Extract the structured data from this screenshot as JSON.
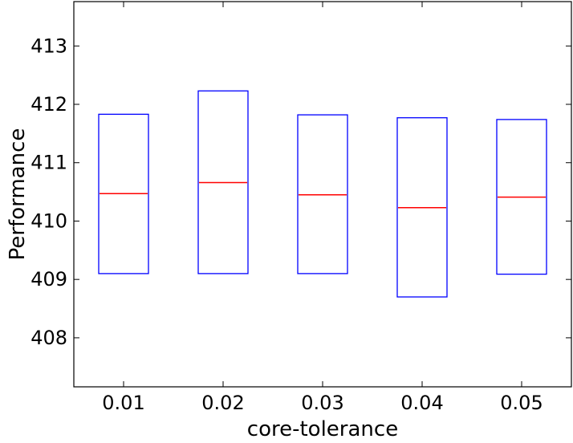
{
  "chart_data": {
    "type": "box",
    "title": "",
    "xlabel": "core-tolerance",
    "ylabel": "Performance",
    "categories": [
      "0.01",
      "0.02",
      "0.03",
      "0.04",
      "0.05"
    ],
    "boxes": [
      {
        "q1": 409.1,
        "median": 410.47,
        "q3": 411.83
      },
      {
        "q1": 409.1,
        "median": 410.66,
        "q3": 412.23
      },
      {
        "q1": 409.1,
        "median": 410.45,
        "q3": 411.82
      },
      {
        "q1": 408.7,
        "median": 410.23,
        "q3": 411.77
      },
      {
        "q1": 409.09,
        "median": 410.41,
        "q3": 411.74
      }
    ],
    "ylim": [
      407.16,
      413.76
    ],
    "yticks": [
      408,
      409,
      410,
      411,
      412,
      413
    ],
    "grid": false,
    "box_color": "#0000ff",
    "median_color": "#ff0000"
  }
}
